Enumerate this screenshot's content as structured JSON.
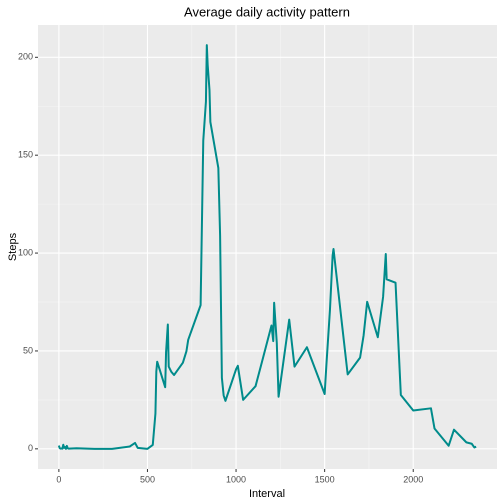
{
  "chart_data": {
    "type": "line",
    "title": "Average daily activity pattern",
    "x_label": "Interval",
    "y_label": "Steps",
    "x": [
      0,
      5,
      10,
      15,
      20,
      25,
      30,
      35,
      40,
      45,
      50,
      55,
      100,
      200,
      300,
      400,
      430,
      445,
      500,
      530,
      545,
      550,
      555,
      600,
      605,
      615,
      620,
      635,
      650,
      700,
      720,
      730,
      800,
      815,
      830,
      835,
      840,
      850,
      855,
      900,
      910,
      920,
      930,
      940,
      1000,
      1010,
      1040,
      1110,
      1145,
      1200,
      1210,
      1215,
      1230,
      1240,
      1300,
      1330,
      1400,
      1500,
      1510,
      1530,
      1545,
      1550,
      1600,
      1630,
      1700,
      1720,
      1740,
      1800,
      1830,
      1845,
      1850,
      1900,
      1930,
      2000,
      2100,
      2120,
      2200,
      2230,
      2300,
      2330,
      2345,
      2355
    ],
    "series": [
      {
        "name": "Steps",
        "color": "#008b8b",
        "values": [
          1.7,
          0.3,
          0.1,
          0.2,
          0.1,
          2.1,
          0.5,
          0.9,
          0,
          1.5,
          0.3,
          0.1,
          0.3,
          0,
          0,
          1.2,
          3,
          0.5,
          0,
          2,
          18,
          39.5,
          44.5,
          31.5,
          49.3,
          63.5,
          42,
          39.3,
          37.7,
          44,
          49.9,
          55.7,
          73.4,
          157.5,
          177.3,
          206.2,
          195.9,
          183.4,
          167,
          143.5,
          109,
          36.3,
          27.3,
          24.5,
          40.6,
          42.4,
          25,
          32,
          44,
          63,
          55,
          74.6,
          54,
          26.6,
          66,
          42,
          51.9,
          28,
          43,
          71,
          98.7,
          102.1,
          62,
          38,
          46.6,
          58,
          75.1,
          57,
          77.7,
          99.5,
          86.6,
          84.9,
          27.5,
          19.6,
          20.7,
          10.4,
          1.6,
          9.8,
          3.3,
          2.6,
          0.7,
          1.1
        ]
      }
    ],
    "xlim": [
      -117.75,
      2472.75
    ],
    "ylim": [
      -10.3,
      216.5
    ],
    "xticks": [
      0,
      500,
      1000,
      1500,
      2000
    ],
    "yticks": [
      0,
      50,
      100,
      150,
      200
    ],
    "grid": true
  }
}
